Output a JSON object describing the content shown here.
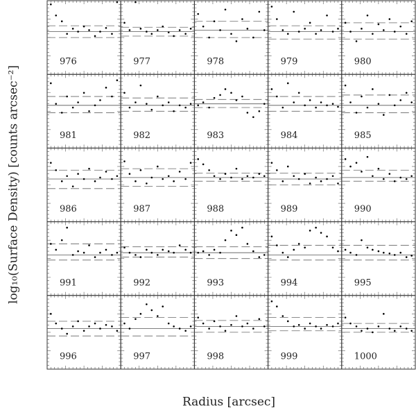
{
  "xlabel": "Radius [arcsec]",
  "ylabel": "log₁₀(Surface Density) [counts arcsec⁻²]",
  "chart_data": [
    {
      "type": "scatter",
      "title": "976",
      "x": [
        5,
        12,
        20,
        27,
        35,
        42,
        50,
        57,
        65,
        72,
        80,
        88,
        95
      ],
      "y": [
        95,
        80,
        72,
        55,
        62,
        58,
        65,
        60,
        52,
        58,
        63,
        55,
        98
      ],
      "xlim": [
        0,
        100
      ],
      "ylim": [
        0,
        100
      ],
      "hline": 58,
      "dashed": [
        50,
        66
      ],
      "color": "#000000"
    },
    {
      "type": "scatter",
      "title": "977",
      "x": [
        5,
        12,
        20,
        27,
        35,
        42,
        50,
        57,
        65,
        72,
        80,
        88,
        95
      ],
      "y": [
        70,
        60,
        98,
        62,
        58,
        55,
        60,
        65,
        57,
        52,
        60,
        55,
        62
      ],
      "xlim": [
        0,
        100
      ],
      "ylim": [
        0,
        100
      ],
      "hline": 58,
      "dashed": [
        52,
        64
      ],
      "color": "#000000"
    },
    {
      "type": "scatter",
      "title": "978",
      "x": [
        5,
        12,
        20,
        27,
        35,
        42,
        50,
        57,
        65,
        72,
        80,
        88,
        95
      ],
      "y": [
        82,
        65,
        50,
        72,
        60,
        88,
        55,
        45,
        75,
        62,
        50,
        85,
        60
      ],
      "xlim": [
        0,
        100
      ],
      "ylim": [
        0,
        100
      ],
      "hline": 60,
      "dashed": [
        50,
        72
      ],
      "color": "#000000"
    },
    {
      "type": "scatter",
      "title": "979",
      "x": [
        5,
        12,
        20,
        27,
        35,
        42,
        50,
        57,
        65,
        72,
        80,
        88,
        95
      ],
      "y": [
        92,
        75,
        60,
        55,
        85,
        58,
        62,
        70,
        55,
        60,
        80,
        58,
        62
      ],
      "xlim": [
        0,
        100
      ],
      "ylim": [
        0,
        100
      ],
      "hline": 58,
      "dashed": [
        48,
        66
      ],
      "color": "#000000"
    },
    {
      "type": "scatter",
      "title": "980",
      "x": [
        5,
        12,
        20,
        27,
        35,
        42,
        50,
        57,
        65,
        72,
        80,
        88,
        95
      ],
      "y": [
        70,
        58,
        45,
        62,
        80,
        55,
        68,
        60,
        75,
        58,
        65,
        55,
        72
      ],
      "xlim": [
        0,
        100
      ],
      "ylim": [
        0,
        100
      ],
      "hline": 58,
      "dashed": [
        48,
        70
      ],
      "color": "#000000"
    },
    {
      "type": "scatter",
      "title": "981",
      "x": [
        5,
        12,
        20,
        27,
        35,
        42,
        50,
        57,
        65,
        72,
        80,
        88,
        95
      ],
      "y": [
        88,
        60,
        48,
        70,
        55,
        62,
        75,
        50,
        58,
        65,
        82,
        70,
        92
      ],
      "xlim": [
        0,
        100
      ],
      "ylim": [
        0,
        100
      ],
      "hline": 58,
      "dashed": [
        48,
        70
      ],
      "color": "#000000"
    },
    {
      "type": "scatter",
      "title": "982",
      "x": [
        5,
        12,
        20,
        27,
        35,
        42,
        50,
        57,
        65,
        72,
        80,
        88,
        95
      ],
      "y": [
        75,
        55,
        62,
        85,
        60,
        52,
        70,
        58,
        62,
        50,
        58,
        55,
        60
      ],
      "xlim": [
        0,
        100
      ],
      "ylim": [
        0,
        100
      ],
      "hline": 58,
      "dashed": [
        50,
        68
      ],
      "color": "#000000"
    },
    {
      "type": "scatter",
      "title": "983",
      "x": [
        5,
        12,
        20,
        27,
        35,
        42,
        50,
        57,
        65,
        72,
        80,
        88,
        95
      ],
      "y": [
        58,
        62,
        55,
        68,
        72,
        80,
        75,
        65,
        70,
        48,
        42,
        50,
        60
      ],
      "xlim": [
        0,
        100
      ],
      "ylim": [
        0,
        100
      ],
      "hline": 60,
      "dashed": [
        55,
        66
      ],
      "color": "#000000"
    },
    {
      "type": "scatter",
      "title": "984",
      "x": [
        5,
        12,
        20,
        27,
        35,
        42,
        50,
        57,
        65,
        72,
        80,
        88,
        95
      ],
      "y": [
        80,
        70,
        55,
        88,
        62,
        75,
        58,
        65,
        55,
        62,
        58,
        60,
        56
      ],
      "xlim": [
        0,
        100
      ],
      "ylim": [
        0,
        100
      ],
      "hline": 58,
      "dashed": [
        50,
        70
      ],
      "color": "#000000"
    },
    {
      "type": "scatter",
      "title": "985",
      "x": [
        5,
        12,
        20,
        27,
        35,
        42,
        50,
        57,
        65,
        72,
        80,
        88,
        95
      ],
      "y": [
        85,
        62,
        48,
        70,
        55,
        80,
        60,
        45,
        72,
        58,
        65,
        75,
        62
      ],
      "xlim": [
        0,
        100
      ],
      "ylim": [
        0,
        100
      ],
      "hline": 58,
      "dashed": [
        48,
        72
      ],
      "color": "#000000"
    },
    {
      "type": "scatter",
      "title": "986",
      "x": [
        5,
        12,
        20,
        27,
        35,
        42,
        50,
        57,
        65,
        72,
        80,
        88,
        95
      ],
      "y": [
        80,
        70,
        55,
        62,
        48,
        65,
        58,
        72,
        55,
        60,
        68,
        58,
        62
      ],
      "xlim": [
        0,
        100
      ],
      "ylim": [
        0,
        100
      ],
      "hline": 58,
      "dashed": [
        45,
        70
      ],
      "color": "#000000"
    },
    {
      "type": "scatter",
      "title": "987",
      "x": [
        5,
        12,
        20,
        27,
        35,
        42,
        50,
        57,
        65,
        72,
        80,
        88,
        95
      ],
      "y": [
        82,
        65,
        55,
        70,
        52,
        60,
        75,
        58,
        62,
        55,
        68,
        58,
        80
      ],
      "xlim": [
        0,
        100
      ],
      "ylim": [
        0,
        100
      ],
      "hline": 60,
      "dashed": [
        48,
        72
      ],
      "color": "#000000"
    },
    {
      "type": "scatter",
      "title": "988",
      "x": [
        5,
        12,
        20,
        27,
        35,
        42,
        50,
        57,
        65,
        72,
        80,
        88,
        95
      ],
      "y": [
        85,
        78,
        70,
        62,
        58,
        65,
        60,
        72,
        58,
        62,
        60,
        65,
        62
      ],
      "xlim": [
        0,
        100
      ],
      "ylim": [
        0,
        100
      ],
      "hline": 60,
      "dashed": [
        55,
        66
      ],
      "color": "#000000"
    },
    {
      "type": "scatter",
      "title": "989",
      "x": [
        5,
        12,
        20,
        27,
        35,
        42,
        50,
        57,
        65,
        72,
        80,
        88,
        95
      ],
      "y": [
        80,
        70,
        55,
        75,
        62,
        58,
        65,
        52,
        60,
        55,
        58,
        62,
        52
      ],
      "xlim": [
        0,
        100
      ],
      "ylim": [
        0,
        100
      ],
      "hline": 58,
      "dashed": [
        50,
        66
      ],
      "color": "#000000"
    },
    {
      "type": "scatter",
      "title": "990",
      "x": [
        5,
        12,
        20,
        27,
        35,
        42,
        50,
        57,
        65,
        72,
        80,
        88,
        95
      ],
      "y": [
        85,
        75,
        80,
        68,
        88,
        62,
        72,
        58,
        65,
        55,
        60,
        58,
        62
      ],
      "xlim": [
        0,
        100
      ],
      "ylim": [
        0,
        100
      ],
      "hline": 60,
      "dashed": [
        55,
        70
      ],
      "color": "#000000"
    },
    {
      "type": "scatter",
      "title": "991",
      "x": [
        5,
        12,
        20,
        27,
        35,
        42,
        50,
        57,
        65,
        72,
        80,
        88,
        95
      ],
      "y": [
        70,
        62,
        75,
        92,
        55,
        60,
        58,
        68,
        52,
        58,
        62,
        55,
        58
      ],
      "xlim": [
        0,
        100
      ],
      "ylim": [
        0,
        100
      ],
      "hline": 55,
      "dashed": [
        48,
        70
      ],
      "color": "#000000"
    },
    {
      "type": "scatter",
      "title": "992",
      "x": [
        5,
        12,
        20,
        27,
        35,
        42,
        50,
        57,
        65,
        72,
        80,
        88,
        95
      ],
      "y": [
        65,
        58,
        55,
        52,
        62,
        58,
        55,
        62,
        60,
        58,
        68,
        62,
        58
      ],
      "xlim": [
        0,
        100
      ],
      "ylim": [
        0,
        100
      ],
      "hline": 58,
      "dashed": [
        52,
        66
      ],
      "color": "#000000"
    },
    {
      "type": "scatter",
      "title": "993",
      "x": [
        5,
        12,
        20,
        27,
        35,
        42,
        50,
        57,
        65,
        72,
        80,
        88,
        95
      ],
      "y": [
        58,
        60,
        55,
        62,
        58,
        75,
        88,
        82,
        92,
        70,
        60,
        52,
        55
      ],
      "xlim": [
        0,
        100
      ],
      "ylim": [
        0,
        100
      ],
      "hline": 58,
      "dashed": [
        50,
        66
      ],
      "color": "#000000"
    },
    {
      "type": "scatter",
      "title": "994",
      "x": [
        5,
        12,
        20,
        27,
        35,
        42,
        50,
        57,
        65,
        72,
        80,
        88,
        95
      ],
      "y": [
        80,
        68,
        58,
        52,
        62,
        70,
        65,
        88,
        92,
        85,
        80,
        65,
        60
      ],
      "xlim": [
        0,
        100
      ],
      "ylim": [
        0,
        100
      ],
      "hline": 55,
      "dashed": [
        48,
        68
      ],
      "color": "#000000"
    },
    {
      "type": "scatter",
      "title": "995",
      "x": [
        5,
        12,
        20,
        27,
        35,
        42,
        50,
        57,
        65,
        72,
        80,
        88,
        95
      ],
      "y": [
        62,
        58,
        55,
        75,
        65,
        62,
        60,
        58,
        57,
        55,
        58,
        52,
        54
      ],
      "xlim": [
        0,
        100
      ],
      "ylim": [
        0,
        100
      ],
      "hline": 55,
      "dashed": [
        48,
        68
      ],
      "color": "#000000"
    },
    {
      "type": "scatter",
      "title": "996",
      "x": [
        5,
        12,
        20,
        27,
        35,
        42,
        50,
        57,
        65,
        72,
        80,
        88,
        95
      ],
      "y": [
        75,
        62,
        55,
        48,
        58,
        65,
        52,
        58,
        62,
        55,
        60,
        58,
        52
      ],
      "xlim": [
        0,
        100
      ],
      "ylim": [
        0,
        100
      ],
      "hline": 55,
      "dashed": [
        45,
        65
      ],
      "color": "#000000"
    },
    {
      "type": "scatter",
      "title": "997",
      "x": [
        5,
        12,
        20,
        27,
        35,
        42,
        50,
        57,
        65,
        72,
        80,
        88,
        95
      ],
      "y": [
        62,
        55,
        68,
        75,
        88,
        80,
        72,
        85,
        62,
        58,
        55,
        52,
        58
      ],
      "xlim": [
        0,
        100
      ],
      "ylim": [
        0,
        100
      ],
      "hline": 55,
      "dashed": [
        45,
        70
      ],
      "color": "#000000"
    },
    {
      "type": "scatter",
      "title": "998",
      "x": [
        5,
        12,
        20,
        27,
        35,
        42,
        50,
        57,
        65,
        72,
        80,
        88,
        95
      ],
      "y": [
        70,
        62,
        55,
        65,
        58,
        52,
        60,
        72,
        58,
        62,
        55,
        68,
        58
      ],
      "xlim": [
        0,
        100
      ],
      "ylim": [
        0,
        100
      ],
      "hline": 58,
      "dashed": [
        50,
        66
      ],
      "color": "#000000"
    },
    {
      "type": "scatter",
      "title": "999",
      "x": [
        5,
        12,
        20,
        27,
        35,
        42,
        50,
        57,
        65,
        72,
        80,
        88,
        95
      ],
      "y": [
        92,
        85,
        72,
        65,
        58,
        60,
        55,
        62,
        58,
        55,
        60,
        58,
        62
      ],
      "xlim": [
        0,
        100
      ],
      "ylim": [
        0,
        100
      ],
      "hline": 58,
      "dashed": [
        52,
        70
      ],
      "color": "#000000"
    },
    {
      "type": "scatter",
      "title": "1000",
      "x": [
        5,
        12,
        20,
        27,
        35,
        42,
        50,
        57,
        65,
        72,
        80,
        88,
        95
      ],
      "y": [
        70,
        62,
        58,
        52,
        55,
        50,
        58,
        75,
        55,
        52,
        58,
        55,
        52
      ],
      "xlim": [
        0,
        100
      ],
      "ylim": [
        0,
        100
      ],
      "hline": 55,
      "dashed": [
        50,
        62
      ],
      "color": "#000000"
    }
  ]
}
